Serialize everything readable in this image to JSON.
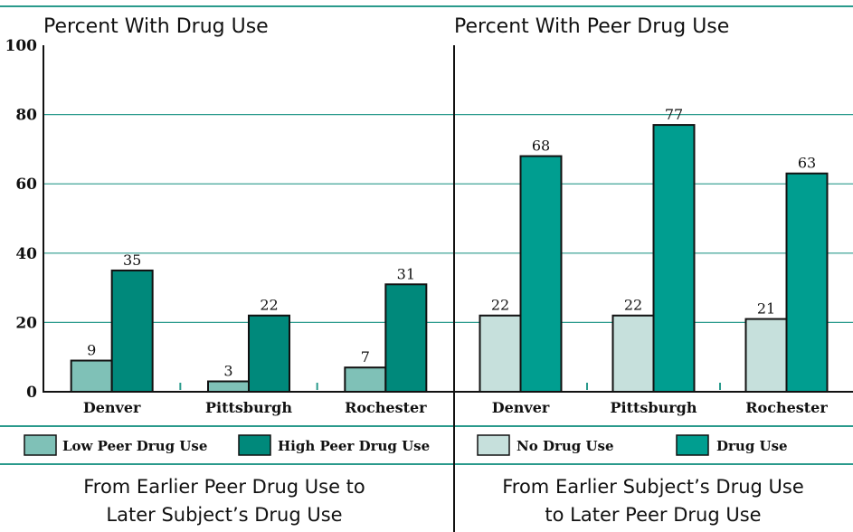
{
  "colors": {
    "rule": "#2a9a8c",
    "grid": "#2a9a8c",
    "low_peer": "#7fc1b7",
    "high_peer": "#00897b",
    "no_drug": "#c6e0dc",
    "drug": "#009e90"
  },
  "chart_data": [
    {
      "type": "bar",
      "title": "Percent With Drug Use",
      "categories": [
        "Denver",
        "Pittsburgh",
        "Rochester"
      ],
      "series": [
        {
          "name": "Low Peer Drug Use",
          "values": [
            9,
            3,
            7
          ]
        },
        {
          "name": "High Peer Drug Use",
          "values": [
            35,
            22,
            31
          ]
        }
      ],
      "ylim": [
        0,
        100
      ],
      "yticks": [
        0,
        20,
        40,
        60,
        80,
        100
      ],
      "grid": true,
      "legend_position": "bottom",
      "caption": [
        "From Earlier Peer Drug Use to",
        "Later Subject’s Drug Use"
      ]
    },
    {
      "type": "bar",
      "title": "Percent With Peer Drug Use",
      "categories": [
        "Denver",
        "Pittsburgh",
        "Rochester"
      ],
      "series": [
        {
          "name": "No Drug Use",
          "values": [
            22,
            22,
            21
          ]
        },
        {
          "name": "Drug Use",
          "values": [
            68,
            77,
            63
          ]
        }
      ],
      "ylim": [
        0,
        100
      ],
      "yticks": [
        0,
        20,
        40,
        60,
        80,
        100
      ],
      "grid": true,
      "legend_position": "bottom",
      "caption": [
        "From Earlier Subject’s Drug Use",
        "to Later Peer Drug Use"
      ]
    }
  ]
}
